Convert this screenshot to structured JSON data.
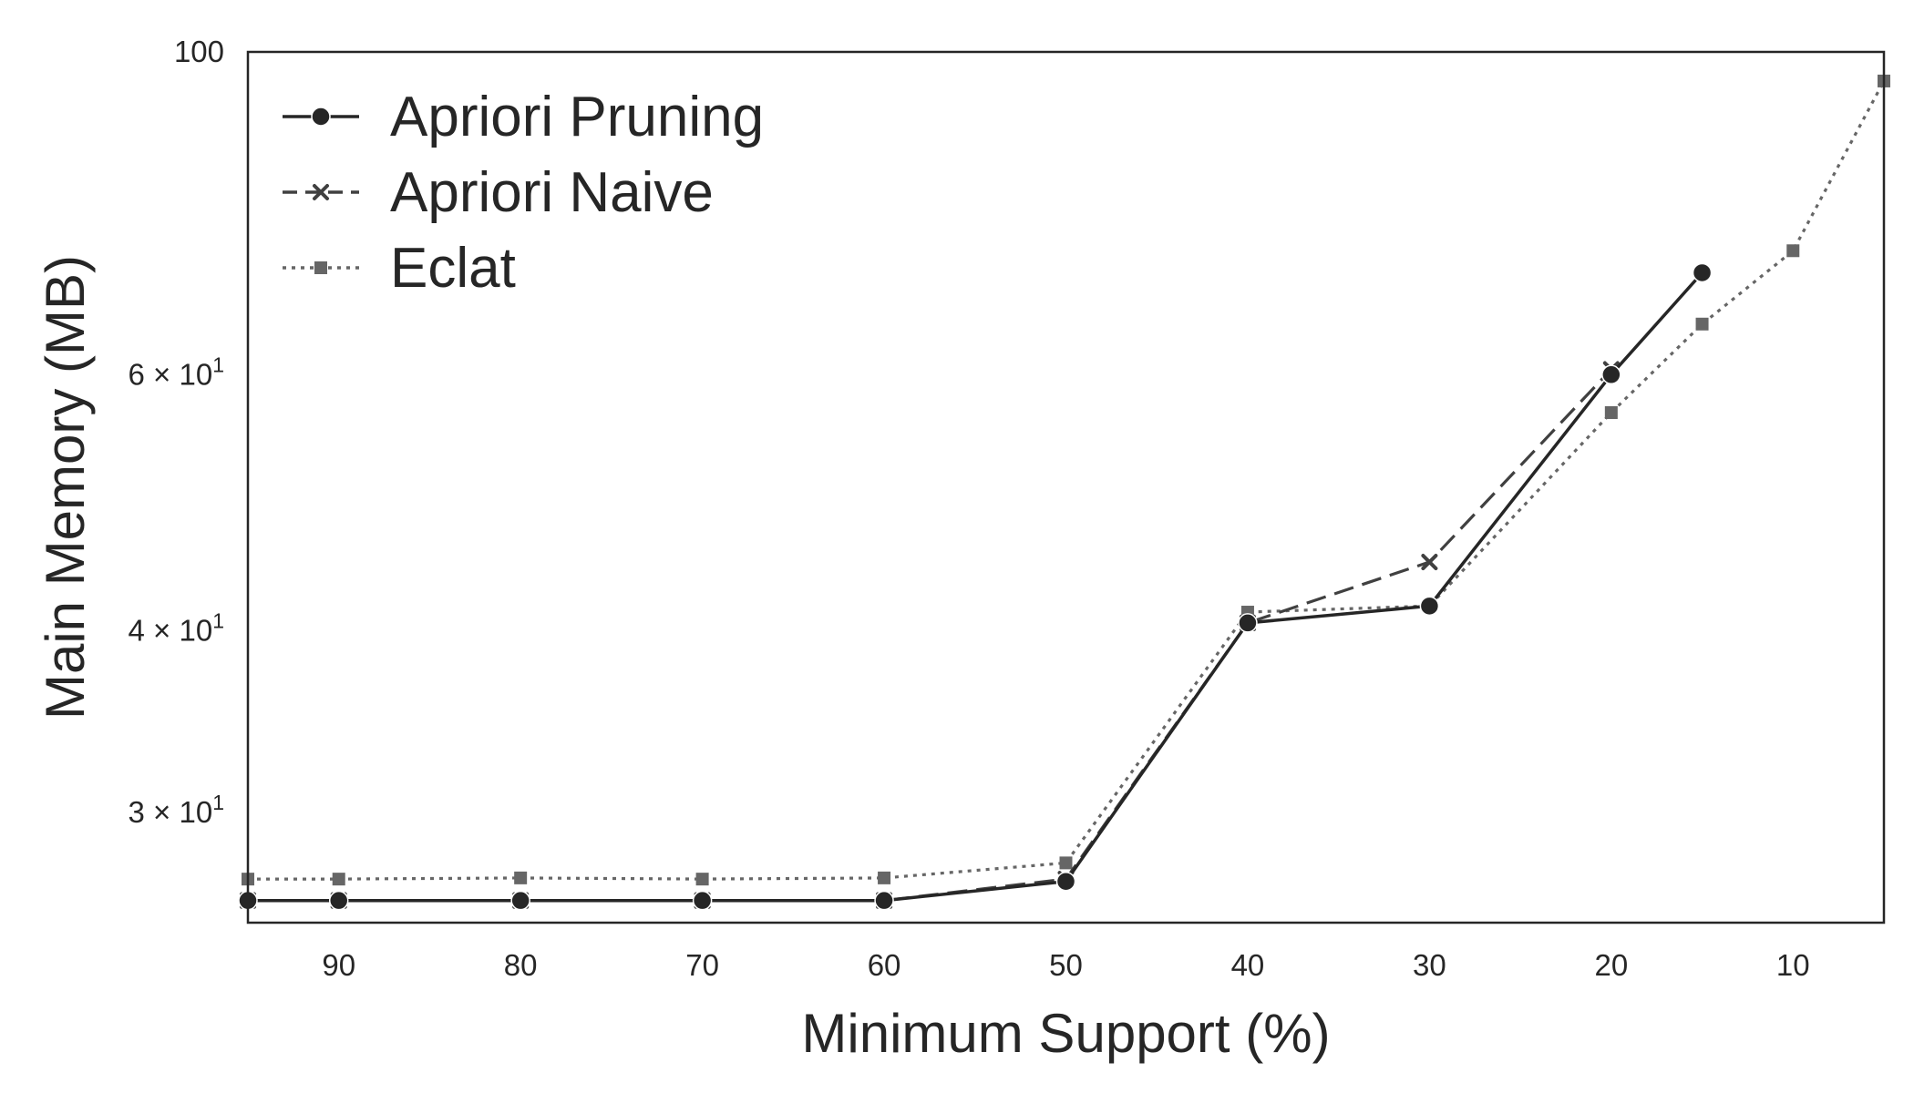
{
  "chart_data": {
    "type": "line",
    "xlabel": "Minimum Support (%)",
    "ylabel": "Main Memory (MB)",
    "y_scale": "log",
    "x_axis_reversed": true,
    "xlim": [
      95,
      5
    ],
    "ylim": [
      25.2,
      100
    ],
    "x_ticks": [
      90,
      80,
      70,
      60,
      50,
      40,
      30,
      20,
      10
    ],
    "x_tick_labels": [
      "90",
      "80",
      "70",
      "60",
      "50",
      "40",
      "30",
      "20",
      "10"
    ],
    "y_ticks": [
      {
        "value": 100,
        "base": "100",
        "exp": ""
      },
      {
        "value": 60,
        "base": "6 × 10",
        "exp": "1"
      },
      {
        "value": 40,
        "base": "4 × 10",
        "exp": "1"
      },
      {
        "value": 30,
        "base": "3 × 10",
        "exp": "1"
      }
    ],
    "grid": false,
    "legend_position": "top-left",
    "series": [
      {
        "name": "Apriori Pruning",
        "style": "solid",
        "marker": "circle",
        "color": "#262626",
        "x": [
          95,
          90,
          80,
          70,
          60,
          50,
          40,
          30,
          20,
          15
        ],
        "y": [
          26.1,
          26.1,
          26.1,
          26.1,
          26.1,
          26.9,
          40.5,
          41.6,
          60.0,
          70.5
        ]
      },
      {
        "name": "Apriori Naive",
        "style": "dashed",
        "marker": "x",
        "color": "#404040",
        "x": [
          95,
          90,
          80,
          70,
          60,
          50,
          40,
          30,
          20
        ],
        "y": [
          26.1,
          26.1,
          26.1,
          26.1,
          26.1,
          27.0,
          40.5,
          44.6,
          60.5
        ]
      },
      {
        "name": "Eclat",
        "style": "dotted",
        "marker": "square",
        "color": "#666666",
        "x": [
          95,
          90,
          80,
          70,
          60,
          50,
          40,
          30,
          20,
          15,
          10,
          5
        ],
        "y": [
          27.0,
          27.0,
          27.05,
          27.0,
          27.05,
          27.7,
          41.2,
          41.6,
          56.5,
          65.0,
          73.0,
          95.5
        ]
      }
    ]
  }
}
